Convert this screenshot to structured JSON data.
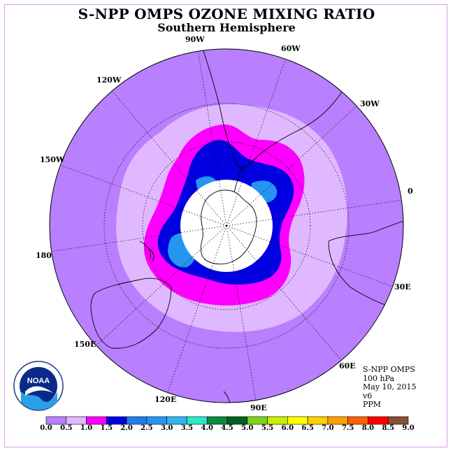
{
  "title": "S-NPP OMPS OZONE MIXING RATIO",
  "subtitle": "Southern Hemisphere",
  "longitude_labels": [
    "90W",
    "60W",
    "30W",
    "0",
    "30E",
    "60E",
    "90E",
    "120E",
    "150E",
    "180",
    "150W",
    "120W"
  ],
  "info": {
    "product": "S-NPP OMPS",
    "level": "100 hPa",
    "date": "May 10, 2015",
    "version": "v6",
    "units": "PPM"
  },
  "logo_text": "NOAA",
  "colorbar": {
    "ticks": [
      "0.0",
      "0.5",
      "1.0",
      "1.5",
      "2.0",
      "2.5",
      "3.0",
      "3.5",
      "4.0",
      "4.5",
      "5.0",
      "5.5",
      "6.0",
      "6.5",
      "7.0",
      "7.5",
      "8.0",
      "8.5",
      "9.0"
    ],
    "colors": [
      "#b87fff",
      "#e0b8ff",
      "#ff00ff",
      "#0000e0",
      "#1e7fe8",
      "#2496f0",
      "#30b4f0",
      "#2de8c8",
      "#0a8a3c",
      "#006020",
      "#80d020",
      "#c8f000",
      "#ffff00",
      "#ffd000",
      "#ffa000",
      "#ff6000",
      "#ff0000",
      "#8a5030"
    ]
  },
  "map_legend": {
    "pole_hole_color": "#ffffff",
    "coastline_color": "#000000"
  }
}
